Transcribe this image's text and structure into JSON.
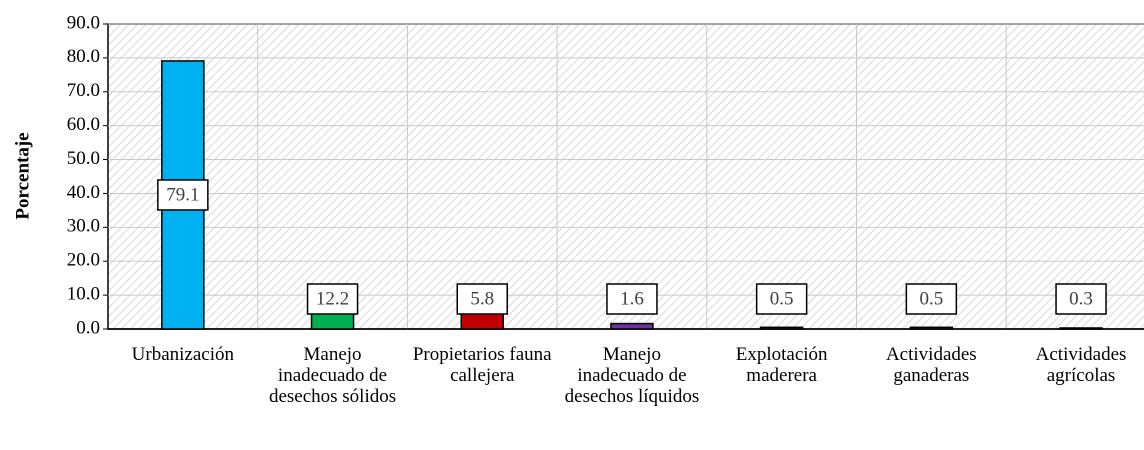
{
  "chart_data": {
    "type": "bar",
    "y_label": "Porcentaje",
    "categories": [
      "Urbanización",
      "Manejo inadecuado de desechos sólidos",
      "Propietarios fauna callejera",
      "Manejo inadecuado de desechos líquidos",
      "Explotación maderera",
      "Actividades ganaderas",
      "Actividades agrícolas"
    ],
    "values": [
      79.1,
      12.2,
      5.8,
      1.6,
      0.5,
      0.5,
      0.3
    ],
    "colors": [
      "#00b0f0",
      "#00b050",
      "#c00000",
      "#7030a0",
      "#404040",
      "#404040",
      "#404040"
    ],
    "ylim": [
      0,
      90
    ],
    "yticks": [
      {
        "value": 0,
        "label": "0.0"
      },
      {
        "value": 10,
        "label": "10.0"
      },
      {
        "value": 20,
        "label": "20.0"
      },
      {
        "value": 30,
        "label": "30.0"
      },
      {
        "value": 40,
        "label": "40.0"
      },
      {
        "value": 50,
        "label": "50.0"
      },
      {
        "value": 60,
        "label": "60.0"
      },
      {
        "value": 70,
        "label": "70.0"
      },
      {
        "value": 80,
        "label": "80.0"
      },
      {
        "value": 90,
        "label": "90.0"
      }
    ],
    "grid": true
  }
}
